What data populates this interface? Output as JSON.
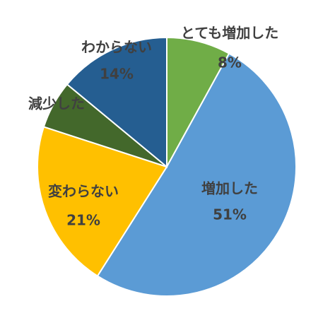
{
  "chart_data": {
    "type": "pie",
    "categories": [
      "とても増加した",
      "増加した",
      "変わらない",
      "減少した",
      "わからない"
    ],
    "values": [
      8,
      51,
      21,
      6,
      14
    ],
    "value_labels": [
      "8%",
      "51%",
      "21%",
      null,
      "14%"
    ],
    "colors": [
      "#70ad47",
      "#5b9bd5",
      "#ffc000",
      "#43682b",
      "#255e91"
    ]
  }
}
